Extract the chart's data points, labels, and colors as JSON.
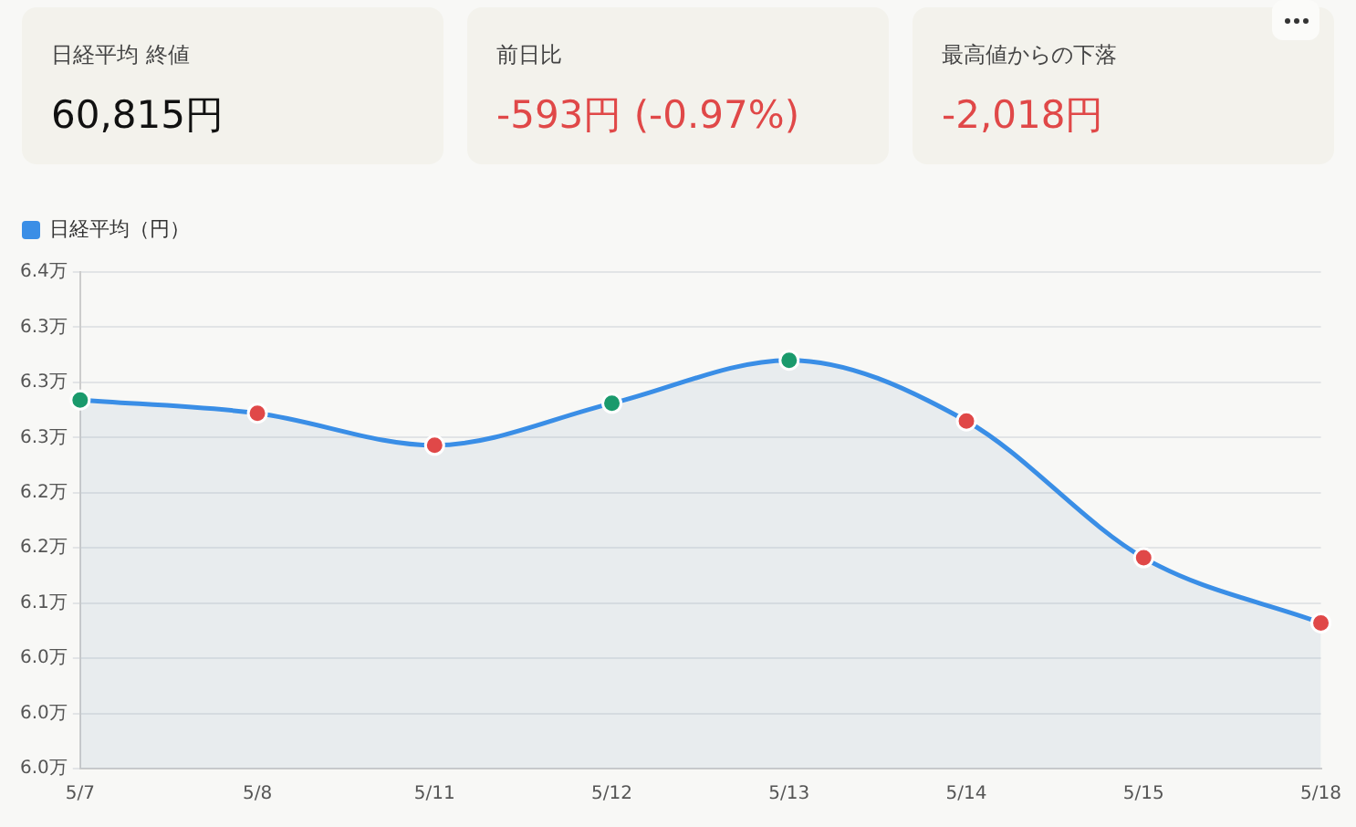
{
  "chart_data": {
    "type": "area",
    "annotations": [
      "日経平均 終値",
      "60,815円",
      "前日比",
      "-593円 (-0.97%)",
      "最高値からの下落",
      "-2,018円"
    ],
    "categories": [
      "5/7",
      "5/8",
      "5/11",
      "5/12",
      "5/13",
      "5/14",
      "5/15",
      "5/18"
    ],
    "series": [
      {
        "name": "日経平均（円）",
        "color": "#3a8ee6",
        "values": [
          6.284,
          6.272,
          6.243,
          6.281,
          6.32,
          6.265,
          6.141,
          6.082
        ],
        "colors": [
          "#1a9a6c",
          "#e04848",
          "#e04848",
          "#1a9a6c",
          "#1a9a6c",
          "#e04848",
          "#e04848",
          "#e04848"
        ]
      }
    ],
    "ylim": [
      5.95,
      6.4
    ],
    "yticks": [
      {
        "value": 5.95,
        "label": "6.0万"
      },
      {
        "value": 6.0,
        "label": "6.0万"
      },
      {
        "value": 6.05,
        "label": "6.0万"
      },
      {
        "value": 6.1,
        "label": "6.1万"
      },
      {
        "value": 6.15,
        "label": "6.2万"
      },
      {
        "value": 6.2,
        "label": "6.2万"
      },
      {
        "value": 6.25,
        "label": "6.3万"
      },
      {
        "value": 6.3,
        "label": "6.3万"
      },
      {
        "value": 6.35,
        "label": "6.3万"
      },
      {
        "value": 6.4,
        "label": "6.4万"
      }
    ],
    "grid": "y",
    "legend": "top left",
    "marker": "circle",
    "line_style": "solid"
  }
}
